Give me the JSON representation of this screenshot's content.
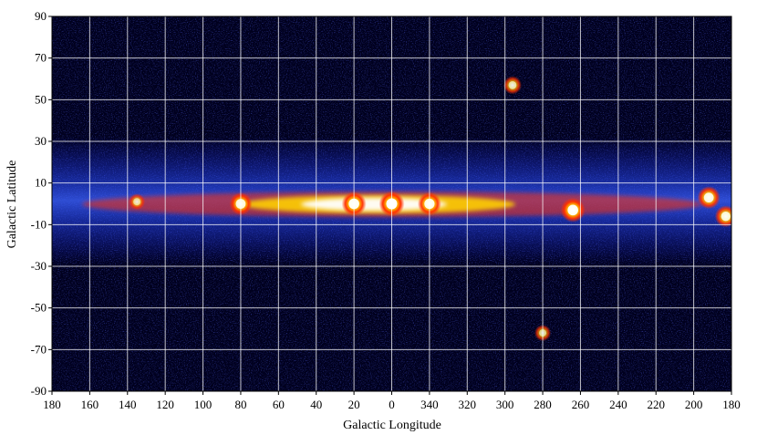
{
  "chart_data": {
    "type": "heatmap",
    "title": "",
    "xlabel": "Galactic Longitude",
    "ylabel": "Galactic Latitude",
    "x_tick_labels": [
      "180",
      "160",
      "140",
      "120",
      "100",
      "80",
      "60",
      "40",
      "20",
      "0",
      "340",
      "320",
      "300",
      "280",
      "260",
      "240",
      "220",
      "200",
      "180"
    ],
    "y_tick_labels": [
      "90",
      "70",
      "50",
      "30",
      "10",
      "-10",
      "-30",
      "-50",
      "-70",
      "-90"
    ],
    "xlim": [
      180,
      -180
    ],
    "ylim": [
      -90,
      90
    ],
    "x_values": [
      180,
      160,
      140,
      120,
      100,
      80,
      60,
      40,
      20,
      0,
      -20,
      -40,
      -60,
      -80,
      -100,
      -120,
      -140,
      -160,
      -180
    ],
    "y_values": [
      90,
      70,
      50,
      30,
      10,
      -10,
      -30,
      -50,
      -70,
      -90
    ],
    "grid": true,
    "colormap": [
      "#000000",
      "#0a0a6e",
      "#1a2cff",
      "#5a7cff",
      "#ff2a00",
      "#ffd000",
      "#ffffff"
    ],
    "background_color": "#00001e",
    "bright_features": [
      {
        "l": 0,
        "b": 0,
        "intensity": 1.0
      },
      {
        "l": 20,
        "b": 0,
        "intensity": 0.95
      },
      {
        "l": -20,
        "b": 0,
        "intensity": 0.9
      },
      {
        "l": 80,
        "b": 0,
        "intensity": 0.85
      },
      {
        "l": -96,
        "b": -3,
        "intensity": 0.95
      },
      {
        "l": -168,
        "b": 3,
        "intensity": 0.85
      },
      {
        "l": -177,
        "b": -6,
        "intensity": 0.8
      },
      {
        "l": 135,
        "b": 1,
        "intensity": 0.5
      },
      {
        "l": -64,
        "b": 57,
        "intensity": 0.6
      },
      {
        "l": -80,
        "b": -62,
        "intensity": 0.5
      }
    ]
  }
}
